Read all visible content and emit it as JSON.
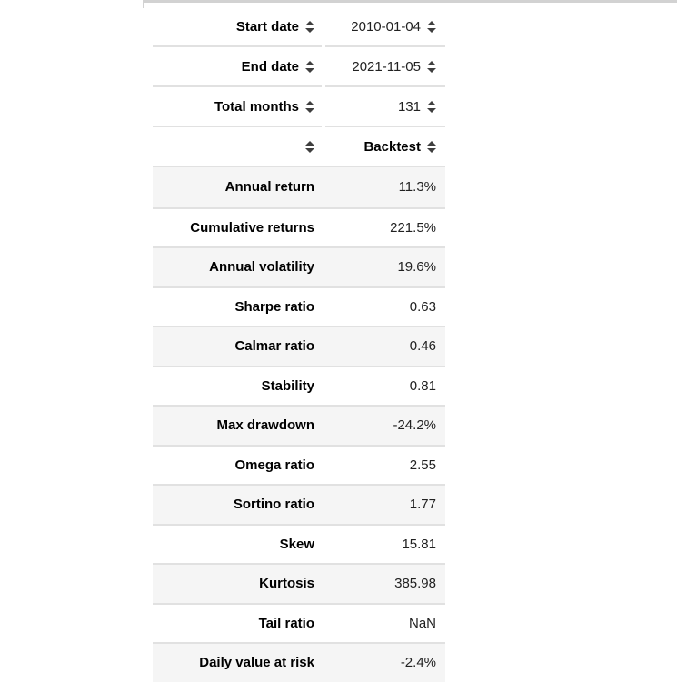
{
  "colors": {
    "separator": "#e1e1e1",
    "stripe": "#f5f5f5",
    "top_border": "#d2d2d2",
    "sort_arrow": "#3f3f3f",
    "label_text": "#000000",
    "value_text": "#212121"
  },
  "header_rows": [
    {
      "label": "Start date",
      "value": "2010-01-04"
    },
    {
      "label": "End date",
      "value": "2021-11-05"
    },
    {
      "label": "Total months",
      "value": "131"
    },
    {
      "label": "",
      "value": "Backtest"
    }
  ],
  "rows": [
    {
      "label": "Annual return",
      "value": "11.3%"
    },
    {
      "label": "Cumulative returns",
      "value": "221.5%"
    },
    {
      "label": "Annual volatility",
      "value": "19.6%"
    },
    {
      "label": "Sharpe ratio",
      "value": "0.63"
    },
    {
      "label": "Calmar ratio",
      "value": "0.46"
    },
    {
      "label": "Stability",
      "value": "0.81"
    },
    {
      "label": "Max drawdown",
      "value": "-24.2%"
    },
    {
      "label": "Omega ratio",
      "value": "2.55"
    },
    {
      "label": "Sortino ratio",
      "value": "1.77"
    },
    {
      "label": "Skew",
      "value": "15.81"
    },
    {
      "label": "Kurtosis",
      "value": "385.98"
    },
    {
      "label": "Tail ratio",
      "value": "NaN"
    },
    {
      "label": "Daily value at risk",
      "value": "-2.4%"
    }
  ],
  "icons": {
    "sort": "sort-up-down-arrows"
  }
}
